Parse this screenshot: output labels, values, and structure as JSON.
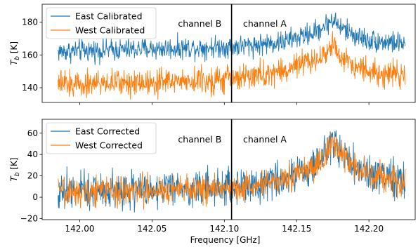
{
  "chart_data": [
    {
      "type": "line",
      "ylabel_sym": "T",
      "ylabel_sub": "b",
      "ylabel_unit": " [K]",
      "xlim": [
        141.974,
        142.232
      ],
      "ylim": [
        131,
        191
      ],
      "yticks": [
        140,
        160,
        180
      ],
      "ytick_labels": [
        "140",
        "160",
        "180"
      ],
      "xticks": [
        142.0,
        142.05,
        142.1,
        142.15,
        142.2
      ],
      "vline_x": 142.105,
      "annotations": [
        {
          "text": "channel B",
          "x": 142.083,
          "y": 179
        },
        {
          "text": "channel A",
          "x": 142.128,
          "y": 179
        }
      ],
      "legend_position": "upper left",
      "series": [
        {
          "name": "East Calibrated",
          "color": "#1f77b4",
          "x": [
            141.985,
            142.0,
            142.02,
            142.04,
            142.06,
            142.08,
            142.1,
            142.12,
            142.14,
            142.16,
            142.17,
            142.175,
            142.18,
            142.19,
            142.2,
            142.21,
            142.225
          ],
          "y": [
            162,
            162.5,
            163,
            163.5,
            164,
            164.5,
            165,
            166,
            168,
            173,
            178,
            182,
            177,
            172,
            169,
            168,
            167
          ],
          "noise": 5
        },
        {
          "name": "West Calibrated",
          "color": "#ff7f0e",
          "x": [
            141.985,
            142.0,
            142.02,
            142.04,
            142.06,
            142.08,
            142.1,
            142.12,
            142.14,
            142.16,
            142.17,
            142.175,
            142.18,
            142.19,
            142.2,
            142.21,
            142.225
          ],
          "y": [
            142,
            142.5,
            143,
            143.5,
            144,
            144.5,
            145,
            147,
            150,
            156,
            161,
            166,
            160,
            154,
            150,
            149,
            148
          ],
          "noise": 6
        }
      ]
    },
    {
      "type": "line",
      "ylabel_sym": "T",
      "ylabel_sub": "b",
      "ylabel_unit": " [K]",
      "xlabel": "Frequency [GHz]",
      "xlim": [
        141.974,
        142.232
      ],
      "ylim": [
        -21,
        73
      ],
      "yticks": [
        -20,
        0,
        20,
        40,
        60
      ],
      "ytick_labels": [
        "−20",
        "0",
        "20",
        "40",
        "60"
      ],
      "xticks": [
        142.0,
        142.05,
        142.1,
        142.15,
        142.2
      ],
      "xtick_labels": [
        "142.00",
        "142.05",
        "142.10",
        "142.15",
        "142.20"
      ],
      "vline_x": 142.105,
      "annotations": [
        {
          "text": "channel B",
          "x": 142.083,
          "y": 54
        },
        {
          "text": "channel A",
          "x": 142.128,
          "y": 54
        }
      ],
      "legend_position": "upper left",
      "series": [
        {
          "name": "East Corrected",
          "color": "#1f77b4",
          "x": [
            141.985,
            142.0,
            142.02,
            142.04,
            142.06,
            142.08,
            142.1,
            142.12,
            142.14,
            142.16,
            142.17,
            142.175,
            142.18,
            142.19,
            142.2,
            142.21,
            142.225
          ],
          "y": [
            6,
            6.5,
            7,
            7.5,
            8,
            8.5,
            9,
            12,
            17,
            28,
            40,
            55,
            42,
            30,
            22,
            18,
            15
          ],
          "noise": 13
        },
        {
          "name": "West Corrected",
          "color": "#ff7f0e",
          "x": [
            141.985,
            142.0,
            142.02,
            142.04,
            142.06,
            142.08,
            142.1,
            142.12,
            142.14,
            142.16,
            142.17,
            142.175,
            142.18,
            142.19,
            142.2,
            142.21,
            142.225
          ],
          "y": [
            5,
            5.5,
            6,
            6.5,
            7,
            7.5,
            8,
            11,
            16,
            27,
            39,
            53,
            41,
            29,
            21,
            17,
            14
          ],
          "noise": 10
        }
      ]
    }
  ]
}
